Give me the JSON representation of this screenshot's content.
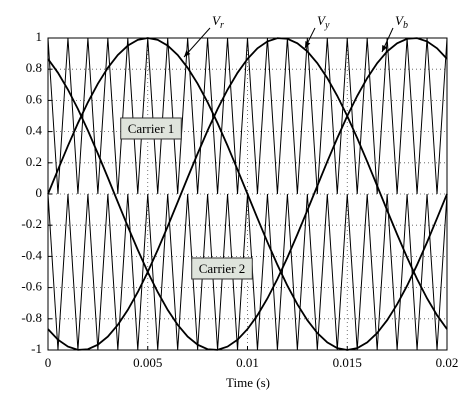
{
  "chart_data": {
    "type": "line",
    "xlabel": "Time (s)",
    "x": [
      0,
      0.0005,
      0.001,
      0.0015,
      0.002,
      0.0025,
      0.003,
      0.0035,
      0.004,
      0.0045,
      0.005,
      0.0055,
      0.006,
      0.0065,
      0.007,
      0.0075,
      0.008,
      0.0085,
      0.009,
      0.0095,
      0.01,
      0.0105,
      0.011,
      0.0115,
      0.012,
      0.0125,
      0.013,
      0.0135,
      0.014,
      0.0145,
      0.015,
      0.0155,
      0.016,
      0.0165,
      0.017,
      0.0175,
      0.018,
      0.0185,
      0.019,
      0.0195,
      0.02
    ],
    "series": [
      {
        "name": "Vr",
        "color": "#000000",
        "values": [
          0,
          0.156,
          0.309,
          0.454,
          0.588,
          0.707,
          0.809,
          0.891,
          0.951,
          0.988,
          1,
          0.988,
          0.951,
          0.891,
          0.809,
          0.707,
          0.588,
          0.454,
          0.309,
          0.156,
          0,
          -0.156,
          -0.309,
          -0.454,
          -0.588,
          -0.707,
          -0.809,
          -0.891,
          -0.951,
          -0.988,
          -1,
          -0.988,
          -0.951,
          -0.891,
          -0.809,
          -0.707,
          -0.588,
          -0.454,
          -0.309,
          -0.156,
          0
        ]
      },
      {
        "name": "Vy",
        "color": "#000000",
        "values": [
          -0.866,
          -0.934,
          -0.978,
          -0.999,
          -0.995,
          -0.966,
          -0.914,
          -0.839,
          -0.743,
          -0.629,
          -0.5,
          -0.358,
          -0.208,
          -0.052,
          0.105,
          0.259,
          0.407,
          0.545,
          0.669,
          0.777,
          0.866,
          0.934,
          0.978,
          0.999,
          0.995,
          0.966,
          0.914,
          0.839,
          0.743,
          0.629,
          0.5,
          0.358,
          0.208,
          0.052,
          -0.105,
          -0.259,
          -0.407,
          -0.545,
          -0.669,
          -0.777,
          -0.866
        ]
      },
      {
        "name": "Vb",
        "color": "#000000",
        "values": [
          0.866,
          0.777,
          0.669,
          0.545,
          0.407,
          0.259,
          0.105,
          -0.052,
          -0.208,
          -0.358,
          -0.5,
          -0.629,
          -0.743,
          -0.839,
          -0.914,
          -0.966,
          -0.995,
          -0.999,
          -0.978,
          -0.934,
          -0.866,
          -0.777,
          -0.669,
          -0.545,
          -0.407,
          -0.259,
          -0.105,
          0.052,
          0.208,
          0.358,
          0.5,
          0.629,
          0.743,
          0.839,
          0.914,
          0.966,
          0.995,
          0.999,
          0.978,
          0.934,
          0.866
        ]
      },
      {
        "name": "Carrier 1",
        "color": "#000000",
        "values": [
          1,
          0,
          1,
          0,
          1,
          0,
          1,
          0,
          1,
          0,
          1,
          0,
          1,
          0,
          1,
          0,
          1,
          0,
          1,
          0,
          1,
          0,
          1,
          0,
          1,
          0,
          1,
          0,
          1,
          0,
          1,
          0,
          1,
          0,
          1,
          0,
          1,
          0,
          1,
          0,
          1
        ]
      },
      {
        "name": "Carrier 2",
        "color": "#000000",
        "values": [
          0,
          -1,
          0,
          -1,
          0,
          -1,
          0,
          -1,
          0,
          -1,
          0,
          -1,
          0,
          -1,
          0,
          -1,
          0,
          -1,
          0,
          -1,
          0,
          -1,
          0,
          -1,
          0,
          -1,
          0,
          -1,
          0,
          -1,
          0,
          -1,
          0,
          -1,
          0,
          -1,
          0,
          -1,
          0,
          -1,
          0
        ]
      }
    ],
    "xlim": [
      0,
      0.02
    ],
    "xticks": [
      0,
      0.005,
      0.01,
      0.015,
      0.02
    ],
    "ylim": [
      -1,
      1
    ],
    "yticks": [
      -1,
      -0.8,
      -0.6,
      -0.4,
      -0.2,
      0,
      0.2,
      0.4,
      0.6,
      0.8,
      1
    ],
    "grid": true
  }
}
